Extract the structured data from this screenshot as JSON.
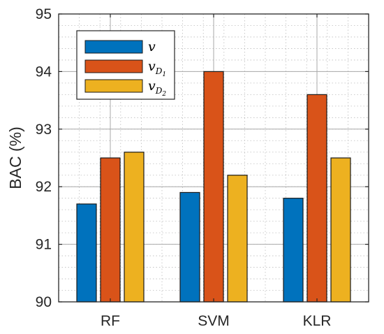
{
  "chart_data": {
    "type": "bar",
    "categories": [
      "RF",
      "SVM",
      "KLR"
    ],
    "series": [
      {
        "name": "v",
        "name_main": "v",
        "name_sub": "",
        "color": "#0072bd",
        "values": [
          91.7,
          91.9,
          91.8
        ]
      },
      {
        "name": "vD1",
        "name_main": "v",
        "name_sub": "D",
        "name_subsub": "1",
        "color": "#d95319",
        "values": [
          92.5,
          94.0,
          93.6
        ]
      },
      {
        "name": "vD2",
        "name_main": "v",
        "name_sub": "D",
        "name_subsub": "2",
        "color": "#edb120",
        "values": [
          92.6,
          92.2,
          92.5
        ]
      }
    ],
    "title": "",
    "xlabel": "",
    "ylabel": "BAC (%)",
    "ylim": [
      90,
      95
    ],
    "yticks": [
      "90",
      "91",
      "92",
      "93",
      "94",
      "95"
    ],
    "grid": true,
    "minor_grid": true,
    "legend_position": "top-left"
  }
}
